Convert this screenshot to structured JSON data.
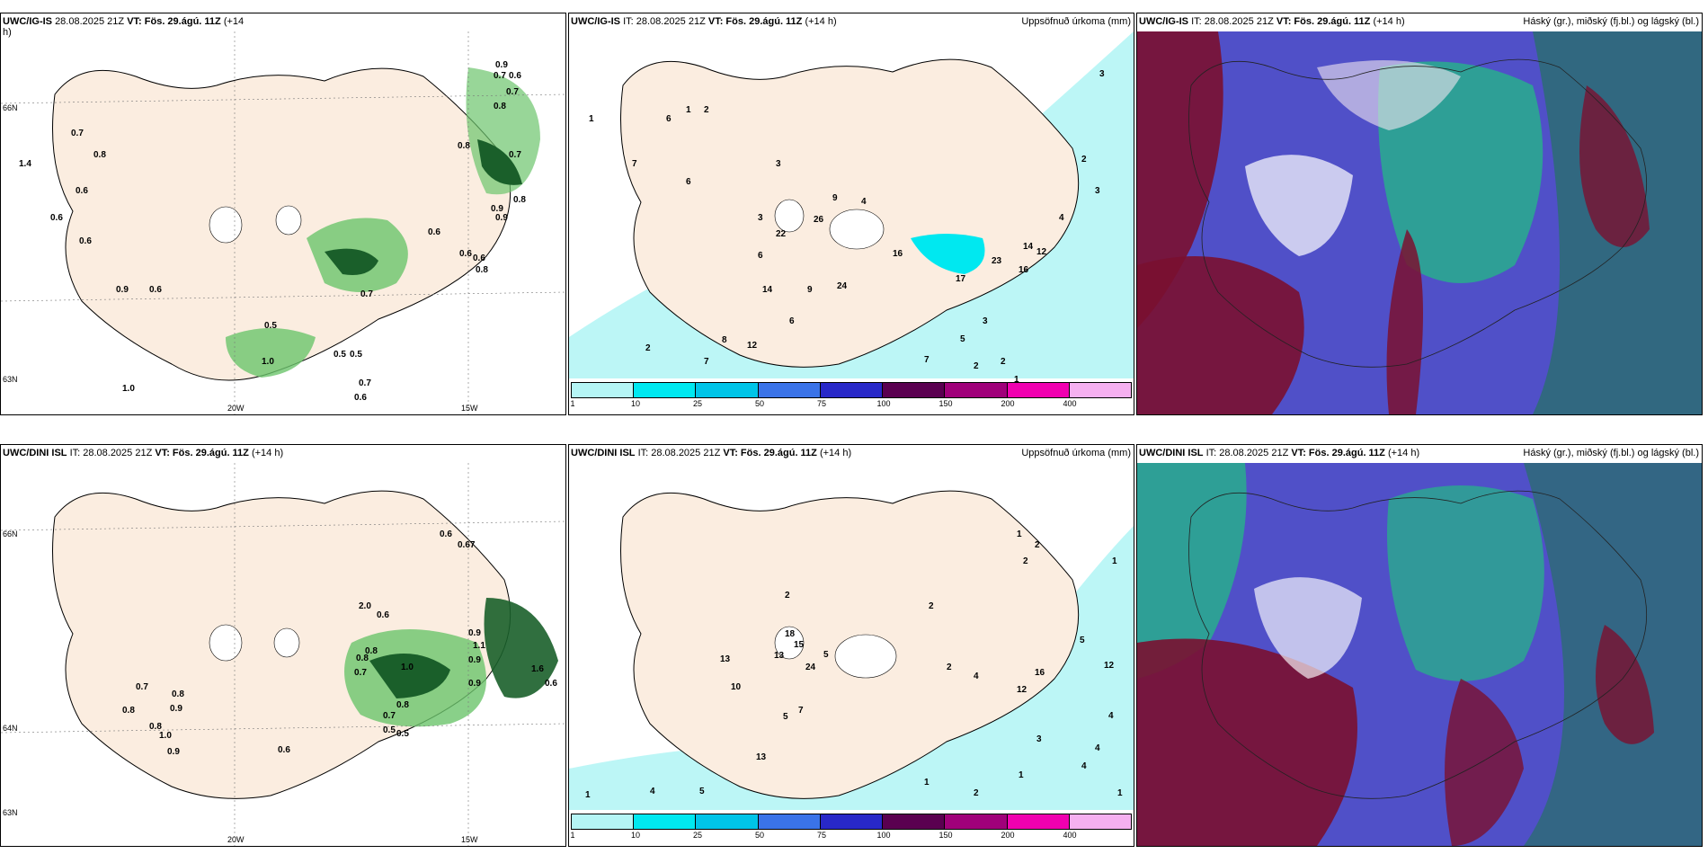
{
  "panels": {
    "tl": {
      "model": "UWC/IG-IS",
      "it": "28.08.2025 21Z",
      "vt_label": "VT:",
      "vt": "Fös. 29.ágú. 11Z",
      "lead": "(+14",
      "lead2": "h)"
    },
    "tm": {
      "model": "UWC/IG-IS",
      "it": "IT: 28.08.2025 21Z",
      "vt_label": "VT:",
      "vt": "Fös. 29.ágú. 11Z",
      "lead": "(+14 h)",
      "right": "Uppsöfnuð úrkoma (mm)"
    },
    "tr": {
      "model": "UWC/IG-IS",
      "it": "IT: 28.08.2025 21Z",
      "vt_label": "VT:",
      "vt": "Fös. 29.ágú. 11Z",
      "lead": "(+14 h)",
      "right": "Háský (gr.), miðský (fj.bl.) og lágský (bl.)"
    },
    "bl": {
      "model": "UWC/DINI ISL",
      "it": "IT: 28.08.2025 21Z",
      "vt_label": "VT:",
      "vt": "Fös. 29.ágú. 11Z",
      "lead": "(+14 h)"
    },
    "bm": {
      "model": "UWC/DINI ISL",
      "it": "IT: 28.08.2025 21Z",
      "vt_label": "VT:",
      "vt": "Fös. 29.ágú. 11Z",
      "lead": "(+14 h)",
      "right": "Uppsöfnuð úrkoma (mm)"
    },
    "br": {
      "model": "UWC/DINI ISL",
      "it": "IT: 28.08.2025 21Z",
      "vt_label": "VT:",
      "vt": "Fös. 29.ágú. 11Z",
      "lead": "(+14 h)",
      "right": "Háský (gr.), miðský (fj.bl.) og lágský (bl.)"
    }
  },
  "axes": {
    "lat_66": "66N",
    "lat_64": "64N",
    "lat_63": "63N",
    "lon_20": "20W",
    "lon_15": "15W"
  },
  "legend": {
    "ticks": [
      "1",
      "10",
      "25",
      "50",
      "75",
      "100",
      "150",
      "200",
      "400"
    ],
    "colors": [
      "#b5f5f5",
      "#00e8f0",
      "#00c4e8",
      "#3a73e8",
      "#2828c8",
      "#5a0050",
      "#a0007a",
      "#f000b0",
      "#f5b0f0"
    ]
  },
  "colors": {
    "land": "#fbede0",
    "green_light": "#c7f0c0",
    "green_mid": "#6cc46c",
    "green_dark": "#1a5f2a",
    "precip_light": "#b5f5f5",
    "precip_mid": "#00e8f0",
    "cloud_high": "#7a1030",
    "cloud_mid": "#5050c8",
    "cloud_low": "#20c080"
  },
  "tl_values": [
    "0.9",
    "0.7",
    "0.6",
    "0.7",
    "0.8",
    "0.7",
    "0.8",
    "1.4",
    "0.6",
    "0.6",
    "0.6",
    "0.8",
    "0.9",
    "0.6",
    "0.5",
    "1.0",
    "0.5",
    "0.5",
    "0.7",
    "0.6",
    "1.0",
    "0.7",
    "0.6",
    "0.8",
    "0.7",
    "0.9",
    "0.6",
    "0.6",
    "0.9",
    "0.8"
  ],
  "tm_values": [
    "3",
    "1",
    "1",
    "2",
    "6",
    "7",
    "6",
    "3",
    "3",
    "4",
    "26",
    "9",
    "22",
    "6",
    "14",
    "9",
    "24",
    "6",
    "17",
    "23",
    "16",
    "12",
    "14",
    "2",
    "3",
    "4",
    "7",
    "2",
    "5",
    "3",
    "2",
    "1",
    "7",
    "8",
    "12",
    "16",
    "2"
  ],
  "bl_values": [
    "0.6",
    "0.67",
    "2.0",
    "0.6",
    "0.8",
    "1.0",
    "0.9",
    "0.7",
    "0.8",
    "0.9",
    "1.1",
    "0.9",
    "1.6",
    "0.6",
    "0.7",
    "0.8",
    "0.9",
    "0.8",
    "0.8",
    "1.0",
    "0.9",
    "0.6",
    "0.5",
    "0.7",
    "0.8",
    "0.5"
  ],
  "bm_values": [
    "1",
    "2",
    "2",
    "1",
    "2",
    "2",
    "18",
    "15",
    "13",
    "13",
    "24",
    "5",
    "10",
    "7",
    "5",
    "12",
    "13",
    "16",
    "12",
    "4",
    "2",
    "5",
    "4",
    "3",
    "1",
    "4",
    "4",
    "2",
    "1",
    "1",
    "1",
    "5",
    "4"
  ]
}
